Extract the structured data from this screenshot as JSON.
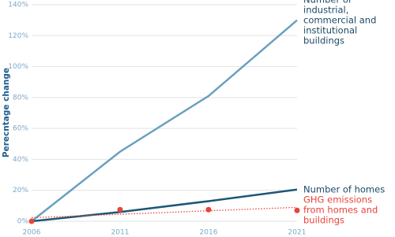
{
  "chart_data": {
    "type": "line",
    "y_axis_label": "Perecntage change",
    "x": [
      2006,
      2011,
      2016,
      2021
    ],
    "xlim": [
      2006,
      2021
    ],
    "xticks": [
      2006,
      2011,
      2016,
      2021
    ],
    "ylim": [
      0,
      140
    ],
    "yticks": [
      {
        "value": 0,
        "label": "0%"
      },
      {
        "value": 20,
        "label": "20%"
      },
      {
        "value": 40,
        "label": "40%"
      },
      {
        "value": 60,
        "label": "60%"
      },
      {
        "value": 80,
        "label": "80%"
      },
      {
        "value": 100,
        "label": "100%"
      },
      {
        "value": 120,
        "label": "120%"
      },
      {
        "value": 140,
        "label": "140%"
      }
    ],
    "grid": true,
    "series": [
      {
        "name": "Number of industrial, commercial and institutional buildings",
        "color": "#6a9fbf",
        "style": "line",
        "values": [
          0,
          45,
          81,
          130
        ]
      },
      {
        "name": "Number of homes",
        "color": "#1b5777",
        "style": "line",
        "values": [
          0,
          6,
          13,
          20.5
        ]
      },
      {
        "name": "GHG emissions from homes and buildings",
        "color": "#e8443a",
        "style": "points",
        "values": [
          0,
          7.5,
          7.5,
          7
        ],
        "trend": [
          2.3,
          9
        ]
      }
    ]
  }
}
